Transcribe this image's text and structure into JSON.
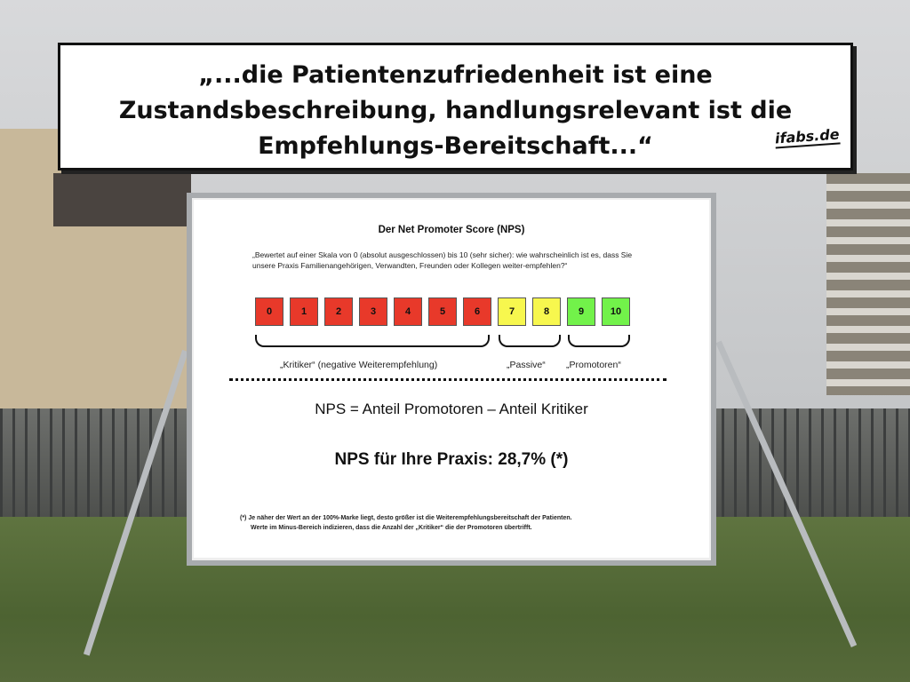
{
  "quote": {
    "lines": [
      "„...die Patientenzufriedenheit ist eine",
      "Zustandsbeschreibung, handlungsrelevant ist die",
      "Empfehlungs-Bereitschaft...“"
    ],
    "logo": "ifabs.de"
  },
  "billboard": {
    "title": "Der Net Promoter Score (NPS)",
    "question": "„Bewertet auf einer Skala von 0 (absolut ausgeschlossen) bis 10 (sehr sicher): wie wahrscheinlich ist es, dass Sie unsere Praxis Familienangehörigen, Verwandten, Freunden oder Kollegen weiter-empfehlen?“",
    "scale": [
      "0",
      "1",
      "2",
      "3",
      "4",
      "5",
      "6",
      "7",
      "8",
      "9",
      "10"
    ],
    "colors": {
      "critic": "#e8392a",
      "passive": "#f7f74e",
      "promoter": "#72f24a"
    },
    "groups": [
      "„Kritiker“ (negative Weiterempfehlung)",
      "„Passive“",
      "„Promotoren“"
    ],
    "formula": "NPS = Anteil Promotoren – Anteil Kritiker",
    "result": "NPS für Ihre Praxis: 28,7% (*)",
    "footnote": [
      "(*) Je näher der Wert an der 100%-Marke liegt, desto größer ist die Weiterempfehlungsbereitschaft der Patienten.",
      "Werte im Minus-Bereich indizieren, dass die Anzahl der „Kritiker“ die der Promotoren übertrifft."
    ]
  }
}
